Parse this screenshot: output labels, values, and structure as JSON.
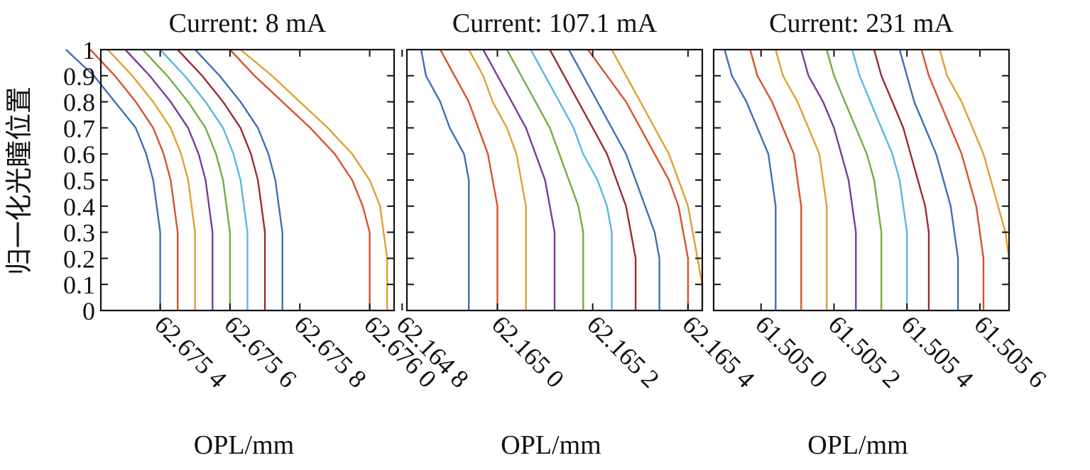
{
  "figure": {
    "ylabel": "归一化光瞳位置"
  },
  "colors": {
    "series": [
      "#3d6fb6",
      "#d9512b",
      "#e0a030",
      "#7b3a98",
      "#72ad3f",
      "#5ab8dd",
      "#9b2a35",
      "#3d6fb6",
      "#d9512b",
      "#e0a030"
    ],
    "axis": "#111111"
  },
  "chart_data": [
    {
      "type": "line",
      "title": "Current: 8 mA",
      "xlabel": "OPL/mm",
      "ylabel": "归一化光瞳位置",
      "xlim": [
        62.67523,
        62.67607
      ],
      "ylim": [
        0,
        1
      ],
      "xticks": [
        62.6754,
        62.6756,
        62.6758,
        62.676
      ],
      "xtick_labels": [
        "62.675 4",
        "62.675 6",
        "62.675 8",
        "62.676 0"
      ],
      "yticks": [
        0,
        0.1,
        0.2,
        0.3,
        0.4,
        0.5,
        0.6,
        0.7,
        0.8,
        0.9,
        1
      ],
      "ytick_labels": [
        "0",
        "0.1",
        "0.2",
        "0.3",
        "0.4",
        "0.5",
        "0.6",
        "0.7",
        "0.8",
        "0.9",
        "1"
      ],
      "grid": false,
      "y": [
        0,
        0.1,
        0.2,
        0.3,
        0.4,
        0.5,
        0.6,
        0.7,
        0.8,
        0.9,
        1
      ],
      "series": [
        {
          "values": [
            62.6754,
            62.6754,
            62.6754,
            62.6754,
            62.67539,
            62.67538,
            62.67536,
            62.67533,
            62.67527,
            62.67521,
            62.67513
          ]
        },
        {
          "values": [
            62.67545,
            62.67545,
            62.67545,
            62.67545,
            62.67544,
            62.67543,
            62.67541,
            62.67538,
            62.67533,
            62.67527,
            62.6752
          ]
        },
        {
          "values": [
            62.6755,
            62.6755,
            62.6755,
            62.6755,
            62.67549,
            62.67548,
            62.67546,
            62.67543,
            62.67538,
            62.67532,
            62.67525
          ]
        },
        {
          "values": [
            62.67555,
            62.67555,
            62.67555,
            62.67555,
            62.67554,
            62.67553,
            62.67551,
            62.67548,
            62.67543,
            62.67537,
            62.6753
          ]
        },
        {
          "values": [
            62.6756,
            62.6756,
            62.6756,
            62.6756,
            62.67559,
            62.67558,
            62.67556,
            62.67553,
            62.67548,
            62.67542,
            62.67535
          ]
        },
        {
          "values": [
            62.67565,
            62.67565,
            62.67565,
            62.67565,
            62.67564,
            62.67563,
            62.67561,
            62.67558,
            62.67553,
            62.67547,
            62.6754
          ]
        },
        {
          "values": [
            62.6757,
            62.6757,
            62.6757,
            62.6757,
            62.67569,
            62.67568,
            62.67566,
            62.67563,
            62.67558,
            62.67552,
            62.67545
          ]
        },
        {
          "values": [
            62.67575,
            62.67575,
            62.67575,
            62.67575,
            62.67574,
            62.67573,
            62.67571,
            62.67568,
            62.67563,
            62.67557,
            62.6755
          ]
        },
        {
          "values": [
            62.676,
            62.676,
            62.676,
            62.676,
            62.67598,
            62.67595,
            62.6759,
            62.67583,
            62.67575,
            62.67567,
            62.6756
          ]
        },
        {
          "values": [
            62.67605,
            62.67605,
            62.67605,
            62.67604,
            62.67603,
            62.676,
            62.67595,
            62.67588,
            62.6758,
            62.67572,
            62.67563
          ]
        }
      ]
    },
    {
      "type": "line",
      "title": "Current: 107.1 mA",
      "xlabel": "OPL/mm",
      "ylabel": "",
      "xlim": [
        62.16481,
        62.16543
      ],
      "ylim": [
        0,
        1
      ],
      "xticks": [
        62.1648,
        62.165,
        62.1652,
        62.1654
      ],
      "xtick_labels": [
        "62.164 8",
        "62.165 0",
        "62.165 2",
        "62.165 4"
      ],
      "yticks": [
        0,
        0.1,
        0.2,
        0.3,
        0.4,
        0.5,
        0.6,
        0.7,
        0.8,
        0.9,
        1
      ],
      "ytick_labels": [],
      "grid": false,
      "y": [
        0,
        0.1,
        0.2,
        0.3,
        0.4,
        0.5,
        0.6,
        0.7,
        0.8,
        0.9,
        1
      ],
      "series": [
        {
          "values": [
            62.16494,
            62.16494,
            62.16494,
            62.16494,
            62.16494,
            62.16494,
            62.16493,
            62.1649,
            62.16488,
            62.16485,
            62.16484
          ]
        },
        {
          "values": [
            62.165,
            62.165,
            62.165,
            62.165,
            62.165,
            62.16499,
            62.16498,
            62.16496,
            62.16494,
            62.16491,
            62.16488
          ]
        },
        {
          "values": [
            62.16506,
            62.16506,
            62.16506,
            62.16506,
            62.16506,
            62.16505,
            62.16504,
            62.16502,
            62.16499,
            62.16497,
            62.16494
          ]
        },
        {
          "values": [
            62.16512,
            62.16512,
            62.16512,
            62.16512,
            62.16511,
            62.1651,
            62.16508,
            62.16506,
            62.16503,
            62.165,
            62.16497
          ]
        },
        {
          "values": [
            62.16518,
            62.16518,
            62.16518,
            62.16518,
            62.16517,
            62.16515,
            62.16513,
            62.16511,
            62.16508,
            62.16505,
            62.16502
          ]
        },
        {
          "values": [
            62.16524,
            62.16524,
            62.16524,
            62.16524,
            62.16523,
            62.16521,
            62.16518,
            62.16516,
            62.16513,
            62.1651,
            62.16507
          ]
        },
        {
          "values": [
            62.16529,
            62.16529,
            62.16529,
            62.16528,
            62.16527,
            62.16525,
            62.16523,
            62.1652,
            62.16517,
            62.16514,
            62.16511
          ]
        },
        {
          "values": [
            62.16534,
            62.16534,
            62.16534,
            62.16533,
            62.16531,
            62.16529,
            62.16527,
            62.16524,
            62.16521,
            62.16518,
            62.16515
          ]
        },
        {
          "values": [
            62.1654,
            62.1654,
            62.1654,
            62.16539,
            62.16538,
            62.16536,
            62.16533,
            62.1653,
            62.16527,
            62.16523,
            62.16519
          ]
        },
        {
          "values": [
            62.16543,
            62.16543,
            62.16542,
            62.16541,
            62.1654,
            62.16538,
            62.16536,
            62.16533,
            62.1653,
            62.16527,
            62.16524
          ]
        }
      ]
    },
    {
      "type": "line",
      "title": "Current: 231 mA",
      "xlabel": "OPL/mm",
      "ylabel": "",
      "xlim": [
        61.50487,
        61.50568
      ],
      "ylim": [
        0,
        1
      ],
      "xticks": [
        61.505,
        61.5052,
        61.5054,
        61.5056
      ],
      "xtick_labels": [
        "61.505 0",
        "61.505 2",
        "61.505 4",
        "61.505 6"
      ],
      "yticks": [
        0,
        0.1,
        0.2,
        0.3,
        0.4,
        0.5,
        0.6,
        0.7,
        0.8,
        0.9,
        1
      ],
      "ytick_labels": [],
      "grid": false,
      "y": [
        0,
        0.1,
        0.2,
        0.3,
        0.4,
        0.5,
        0.6,
        0.7,
        0.8,
        0.9,
        1
      ],
      "series": [
        {
          "values": [
            61.50504,
            61.50504,
            61.50504,
            61.50504,
            61.50504,
            61.50503,
            61.50502,
            61.50499,
            61.50496,
            61.50492,
            61.5049
          ]
        },
        {
          "values": [
            61.50511,
            61.50511,
            61.50511,
            61.50511,
            61.50511,
            61.5051,
            61.50509,
            61.50506,
            61.50503,
            61.50499,
            61.50497
          ]
        },
        {
          "values": [
            61.50518,
            61.50518,
            61.50518,
            61.50518,
            61.50518,
            61.50517,
            61.50516,
            61.50513,
            61.5051,
            61.50506,
            61.50504
          ]
        },
        {
          "values": [
            61.50526,
            61.50526,
            61.50526,
            61.50526,
            61.50525,
            61.50524,
            61.50522,
            61.5052,
            61.50517,
            61.50513,
            61.50511
          ]
        },
        {
          "values": [
            61.50533,
            61.50533,
            61.50533,
            61.50533,
            61.50532,
            61.50531,
            61.50529,
            61.50526,
            61.50523,
            61.5052,
            61.50518
          ]
        },
        {
          "values": [
            61.5054,
            61.5054,
            61.5054,
            61.5054,
            61.50539,
            61.50538,
            61.50536,
            61.50533,
            61.5053,
            61.50527,
            61.50525
          ]
        },
        {
          "values": [
            61.50546,
            61.50546,
            61.50546,
            61.50546,
            61.50545,
            61.50543,
            61.50541,
            61.50539,
            61.50536,
            61.50533,
            61.50531
          ]
        },
        {
          "values": [
            61.50554,
            61.50554,
            61.50554,
            61.50553,
            61.50552,
            61.5055,
            61.50548,
            61.50545,
            61.50542,
            61.5054,
            61.50538
          ]
        },
        {
          "values": [
            61.50561,
            61.50561,
            61.50561,
            61.5056,
            61.50559,
            61.50557,
            61.50555,
            61.50552,
            61.50549,
            61.50546,
            61.50544
          ]
        },
        {
          "values": [
            61.50568,
            61.50568,
            61.50568,
            61.50567,
            61.50565,
            61.50563,
            61.50561,
            61.50558,
            61.50555,
            61.50551,
            61.50549
          ]
        }
      ]
    }
  ]
}
